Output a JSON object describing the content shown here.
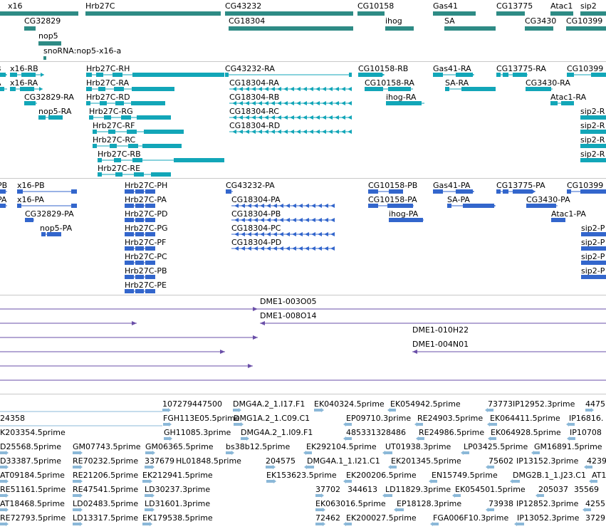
{
  "colors": {
    "gene_track": "#2e8b85",
    "rna_track": "#12a6b8",
    "cds_track": "#3366cc",
    "alignment_track": "#6a4fa8",
    "est_track": "#8bb8d8",
    "separator": "#c8c8c8"
  },
  "genes": [
    "x16",
    "Hrb27C",
    "CG43232",
    "CG10158",
    "Gas41",
    "CG13775",
    "Atac1",
    "sip2",
    "CG32829",
    "CG18304",
    "ihog",
    "SA",
    "CG3430",
    "CG10399",
    "nop5",
    "snoRNA:nop5-x16-a"
  ],
  "transcripts": [
    "x16-RB",
    "x16-RA",
    "Hrb27C-RH",
    "Hrb27C-RA",
    "Hrb27C-RD",
    "Hrb27C-RG",
    "Hrb27C-RF",
    "Hrb27C-RC",
    "Hrb27C-RB",
    "Hrb27C-RE",
    "CG32829-RA",
    "nop5-RA",
    "CG43232-RA",
    "CG18304-RA",
    "CG18304-RB",
    "CG18304-RC",
    "CG18304-RD",
    "CG10158-RB",
    "CG10158-RA",
    "ihog-RA",
    "Gas41-RA",
    "SA-RA",
    "CG13775-RA",
    "CG3430-RA",
    "Atac1-RA",
    "CG10399",
    "sip2-R",
    "sip2-R",
    "sip2-R",
    "sip2-R"
  ],
  "proteins": [
    "x16-PB",
    "x16-PA",
    "CG32829-PA",
    "nop5-PA",
    "Hrb27C-PH",
    "Hrb27C-PA",
    "Hrb27C-PD",
    "Hrb27C-PG",
    "Hrb27C-PF",
    "Hrb27C-PC",
    "Hrb27C-PB",
    "Hrb27C-PE",
    "CG43232-PA",
    "CG18304-PA",
    "CG18304-PB",
    "CG18304-PC",
    "CG18304-PD",
    "CG10158-PB",
    "CG10158-PA",
    "ihog-PA",
    "Gas41-PA",
    "SA-PA",
    "CG13775-PA",
    "CG3430-PA",
    "Atac1-PA",
    "CG10399",
    "sip2-P",
    "sip2-P",
    "sip2-P",
    "sip2-P",
    "PB",
    "PA"
  ],
  "edge_fragments": [
    "B",
    "A"
  ],
  "alignments": [
    "DME1-003O05",
    "DME1-008O14",
    "DME1-010H22",
    "DME1-004N01"
  ],
  "ests": [
    [
      "107279447500",
      "DMG4A.2_1.I17.F1",
      "EK040324.5prime",
      "EK054942.5prime",
      "73773IP12952.3prime",
      "4475"
    ],
    [
      "24358",
      "FGH113E05.5prime",
      "DMG1A.2_1.C09.C1",
      "EP09710.3prime",
      "RE24903.5prime",
      "EK064411.5prime",
      "IP16816."
    ],
    [
      "K203354.5prime",
      "GH11085.3prime",
      "DMG4A.2_1.I09.F1",
      "485331328486",
      "RE24986.5prime",
      "EK064928.5prime",
      "IP10708"
    ],
    [
      "D25568.5prime",
      "GM07743.5prime",
      "GM06365.5prime",
      "bs38b12.5prime",
      "EK292104.5prime",
      "UT01938.3prime",
      "LP03425.5prime",
      "GM16891.5prime"
    ],
    [
      "D33387.5prime",
      "RE70232.5prime",
      "337679",
      "HL01848.5prime",
      "204575",
      "DMG4A.1_1.I21.C1",
      "EK201345.5prime",
      "75602",
      "IP13152.3prime",
      "4239"
    ],
    [
      "AT09184.5prime",
      "RE21206.5prime",
      "EK212941.5prime",
      "EK153623.5prime",
      "EK200206.5prime",
      "EN15749.5prime",
      "DMG2B.1_1.J23.C1",
      "AT1"
    ],
    [
      "RE51161.5prime",
      "RE47541.5prime",
      "LD30237.3prime",
      "37702",
      "344613",
      "LD11829.3prime",
      "EK054501.5prime",
      "205037",
      "35569"
    ],
    [
      "AT18468.5prime",
      "LD02483.5prime",
      "LD31601.3prime",
      "EK063016.5prime",
      "EP18128.3prime",
      "73938",
      "IP12852.3prime",
      "4255"
    ],
    [
      "RE72793.5prime",
      "LD13317.5prime",
      "EK179538.5prime",
      "72462",
      "EK200027.5prime",
      "FGA006F10.3prime",
      "IP13052.3prime",
      "3729"
    ]
  ]
}
